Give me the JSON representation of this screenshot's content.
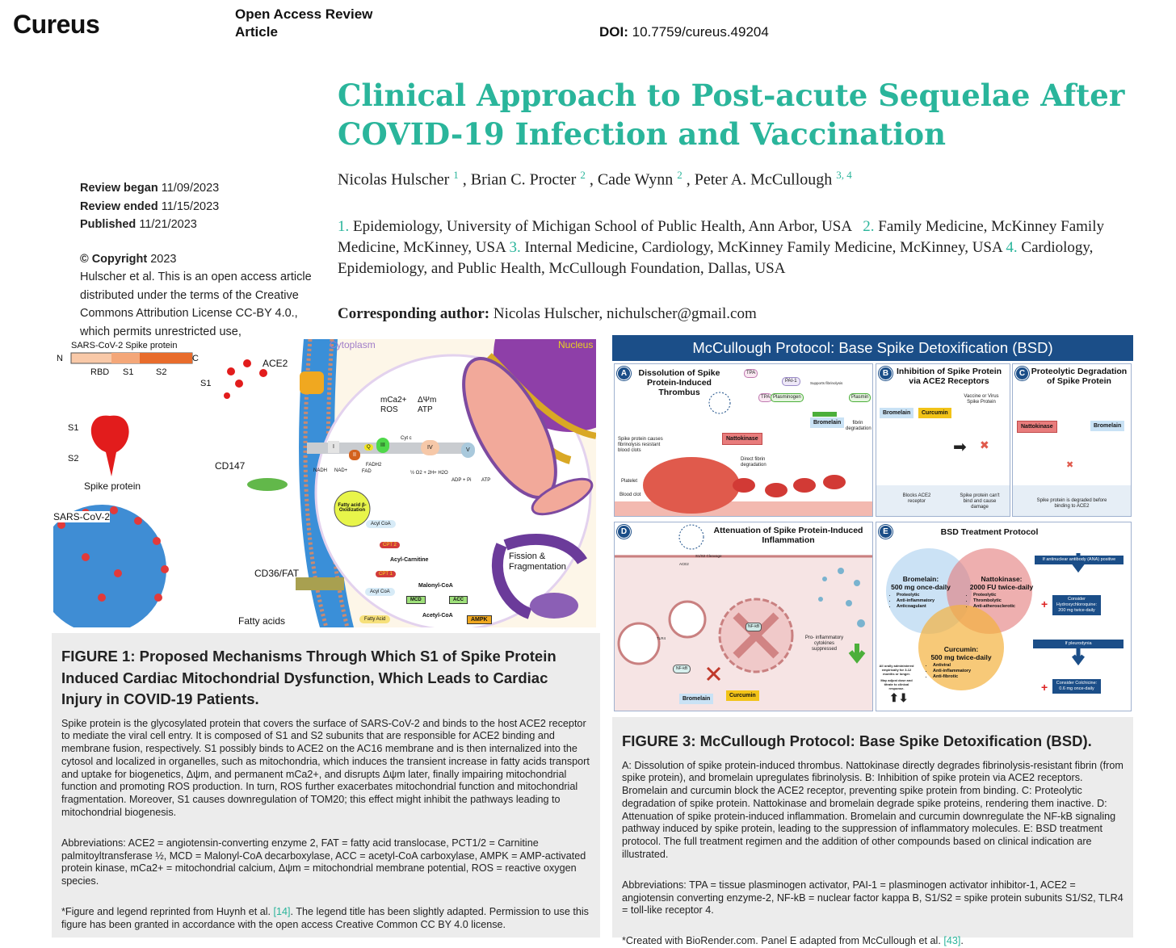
{
  "header": {
    "logo": "Cureus",
    "article_type": "Open Access Review Article",
    "doi_label": "DOI:",
    "doi": "10.7759/cureus.49204"
  },
  "article": {
    "title": "Clinical Approach to Post-acute Sequelae After COVID-19 Infection and Vaccination",
    "authors": [
      {
        "name": "Nicolas Hulscher",
        "sup": "1"
      },
      {
        "name": "Brian C. Procter",
        "sup": "2"
      },
      {
        "name": "Cade Wynn",
        "sup": "2"
      },
      {
        "name": "Peter A. McCullough",
        "sup": "3, 4"
      }
    ],
    "affiliations": [
      {
        "num": "1.",
        "text": "Epidemiology, University of Michigan School of Public Health, Ann Arbor, USA"
      },
      {
        "num": "2.",
        "text": "Family Medicine, McKinney Family Medicine, McKinney, USA"
      },
      {
        "num": "3.",
        "text": "Internal Medicine, Cardiology, McKinney Family Medicine, McKinney, USA"
      },
      {
        "num": "4.",
        "text": "Cardiology, Epidemiology, and Public Health, McCullough Foundation, Dallas, USA"
      }
    ],
    "corresponding_label": "Corresponding author:",
    "corresponding_text": "Nicolas Hulscher, nichulscher@gmail.com"
  },
  "meta": {
    "review_began_label": "Review began",
    "review_began": "11/09/2023",
    "review_ended_label": "Review ended",
    "review_ended": "11/15/2023",
    "published_label": "Published",
    "published": "11/21/2023",
    "copyright_label": "© Copyright",
    "copyright_year": "2023",
    "license_text": "Hulscher et al. This is an open access article distributed under the terms of the Creative Commons Attribution License CC-BY 4.0., which permits unrestricted use,"
  },
  "figure1": {
    "labels": {
      "spike_header": "SARS-CoV-2 Spike protein",
      "n": "N",
      "c": "C",
      "rbd": "RBD",
      "s1": "S1",
      "s2": "S2",
      "ace2": "ACE2",
      "s1_free": "S1",
      "spike_s1": "S1",
      "spike_s2": "S2",
      "spike_protein": "Spike protein",
      "cd147": "CD147",
      "sars": "SARS-CoV-2",
      "cd36": "CD36/FAT",
      "fatty_acids": "Fatty acids",
      "cytoplasm": "Cytoplasm",
      "nucleus": "Nucleus",
      "mca": "mCa2+",
      "ros": "ROS",
      "dpsi": "ΔΨm",
      "atp": "ATP",
      "beta_ox": "Fatty acid β-Oxidization",
      "acyl_coa": "Acyl CoA",
      "cpt2": "CPT 2",
      "acyl_carnitine": "Acyl-Carnitine",
      "cpt1": "CPT 1",
      "malonyl": "Malonyl-CoA",
      "mcd": "MCD",
      "acc": "ACC",
      "acetyl": "Acetyl-CoA",
      "ampk": "AMPK",
      "fatty_acid": "Fatty Acid",
      "fission": "Fission &",
      "fragmentation": "Fragmentation",
      "c1": "I",
      "c2": "II",
      "c3": "III",
      "c4": "IV",
      "c5": "V",
      "q": "Q",
      "cytc": "Cyt c",
      "nadh": "NADH",
      "nad": "NAD+",
      "fad": "FAD",
      "fadh2": "FADH2",
      "adp": "ADP + Pi",
      "atp2": "ATP",
      "h2o": "½ O2 + 2H+   H2O"
    },
    "caption": {
      "title": "FIGURE 1: Proposed Mechanisms Through Which S1 of Spike Protein Induced Cardiac Mitochondrial Dysfunction, Which Leads to Cardiac Injury in COVID-19 Patients.",
      "body": "Spike protein is the glycosylated protein that covers the surface of SARS-CoV-2 and binds to the host ACE2 receptor to mediate the viral cell entry. It is composed of S1 and S2 subunits that are responsible for ACE2 binding and membrane fusion, respectively. S1 possibly binds to ACE2 on the AC16 membrane and is then internalized into the cytosol and localized in organelles, such as mitochondria, which induces the transient increase in fatty acids transport and uptake for biogenetics, Δψm, and permanent mCa2+, and disrupts Δψm later, finally impairing mitochondrial function and promoting ROS production. In turn, ROS further exacerbates mitochondrial function and mitochondrial fragmentation. Moreover, S1 causes downregulation of TOM20; this effect might inhibit the pathways leading to mitochondrial biogenesis.",
      "abbreviations": "Abbreviations: ACE2 = angiotensin-converting enzyme 2, FAT = fatty acid translocase, PCT1/2 = Carnitine palmitoyltransferase ½, MCD = Malonyl-CoA decarboxylase, ACC = acetyl-CoA carboxylase, AMPK = AMP-activated protein kinase, mCa2+ = mitochondrial calcium, Δψm = mitochondrial membrane potential, ROS = reactive oxygen species.",
      "note_prefix": "*Figure and legend reprinted from Huynh et al. ",
      "note_ref": "[14]",
      "note_suffix": ". The legend title has been slightly adapted. Permission to use this figure has been granted in accordance with the open access Creative Common CC BY 4.0 license."
    }
  },
  "figure3": {
    "header": "McCullough Protocol: Base Spike Detoxification (BSD)",
    "panel_a": {
      "letter": "A",
      "title": "Dissolution of Spike Protein-Induced Thrombus",
      "tpa": "TPA",
      "pai": "PAI-1",
      "tpa2": "TPA",
      "plasminogen": "Plasminogen",
      "supports": "Supports fibrinolysis",
      "plasmin": "Plasmin",
      "fibrin_deg": "fibrin degradation",
      "bromelain": "Bromelain",
      "nattokinase": "Nattokinase",
      "spike_causes": "Spike protein causes fibrinolysis resistant blood clots",
      "direct": "Direct fibrin degradation",
      "platelet": "Platelet",
      "blood_clot": "Blood clot",
      "n1": "1",
      "n2": "2",
      "n3": "3"
    },
    "panel_b": {
      "letter": "B",
      "title": "Inhibition of Spike Protein via ACE2 Receptors",
      "vaccine": "Vaccine or Virus Spike Protein",
      "bromelain": "Bromelain",
      "curcumin": "Curcumin",
      "blocks": "Blocks ACE2 receptor",
      "cant": "Spike protein can't bind and cause damage"
    },
    "panel_c": {
      "letter": "C",
      "title": "Proteolytic Degradation of Spike Protein",
      "nattokinase": "Nattokinase",
      "bromelain": "Bromelain",
      "degraded": "Spike protein is degraded before binding to ACE2"
    },
    "panel_d": {
      "letter": "D",
      "title": "Attenuation of Spike Protein-Induced Inflammation",
      "cleavage": "S1/S2 Cleavage",
      "ace2": "ACE2",
      "tlr4": "TLR4",
      "nfkb": "NF-kB",
      "nfkb2": "NF-kB",
      "cytokines": "Pro- inflammatory cytokines suppressed",
      "bromelain": "Bromelain",
      "curcumin": "Curcumin"
    },
    "panel_e": {
      "letter": "E",
      "title": "BSD Treatment Protocol",
      "bromelain": {
        "name": "Bromelain:",
        "dose": "500 mg once-daily",
        "items": [
          "Proteolytic",
          "Anti-inflammatory",
          "Anticoagulant"
        ]
      },
      "nattokinase": {
        "name": "Nattokinase:",
        "dose": "2000 FU twice-daily",
        "items": [
          "Proteolytic",
          "Thrombolytic",
          "Anti-atherosclerotic"
        ]
      },
      "curcumin": {
        "name": "Curcumin:",
        "dose": "500 mg twice-daily",
        "items": [
          "Antiviral",
          "Anti-inflammatory",
          "Anti-fibrotic"
        ]
      },
      "ana": "If antinuclear antibody (ANA) positive",
      "hcq": "Consider Hydroxychloroquine: 200 mg twice-daily",
      "pleurodynia": "If pleurodynia",
      "colchicine": "Consider Colchicine: 0.6 mg once-daily",
      "note1": "All orally administered empirically for 3-12 months or longer.",
      "note2": "May adjust dose and titrate to clinical response.",
      "plus": "+"
    },
    "caption": {
      "title": "FIGURE 3: McCullough Protocol: Base Spike Detoxification (BSD).",
      "body": "A: Dissolution of spike protein-induced thrombus. Nattokinase directly degrades fibrinolysis-resistant fibrin (from spike protein), and bromelain upregulates fibrinolysis. B: Inhibition of spike protein via ACE2 receptors. Bromelain and curcumin block the ACE2 receptor, preventing spike protein from binding. C: Proteolytic degradation of spike protein. Nattokinase and bromelain degrade spike proteins, rendering them inactive. D: Attenuation of spike protein-induced inflammation. Bromelain and curcumin downregulate the NF-kB signaling pathway induced by spike protein, leading to the suppression of inflammatory molecules. E: BSD treatment protocol. The full treatment regimen and the addition of other compounds based on clinical indication are illustrated.",
      "abbreviations": "Abbreviations: TPA = tissue plasminogen activator, PAI-1 = plasminogen activator inhibitor-1, ACE2 = angiotensin converting enzyme-2, NF-kB = nuclear factor kappa B, S1/S2 = spike protein subunits S1/S2, TLR4 = toll-like receptor 4.",
      "note_prefix": "*Created with BioRender.com. Panel E adapted from McCullough et al. ",
      "note_ref": "[43]",
      "note_suffix": "."
    }
  },
  "colors": {
    "accent": "#2ab59b",
    "figure_header": "#1b4e88",
    "caption_bg": "#ececec"
  }
}
